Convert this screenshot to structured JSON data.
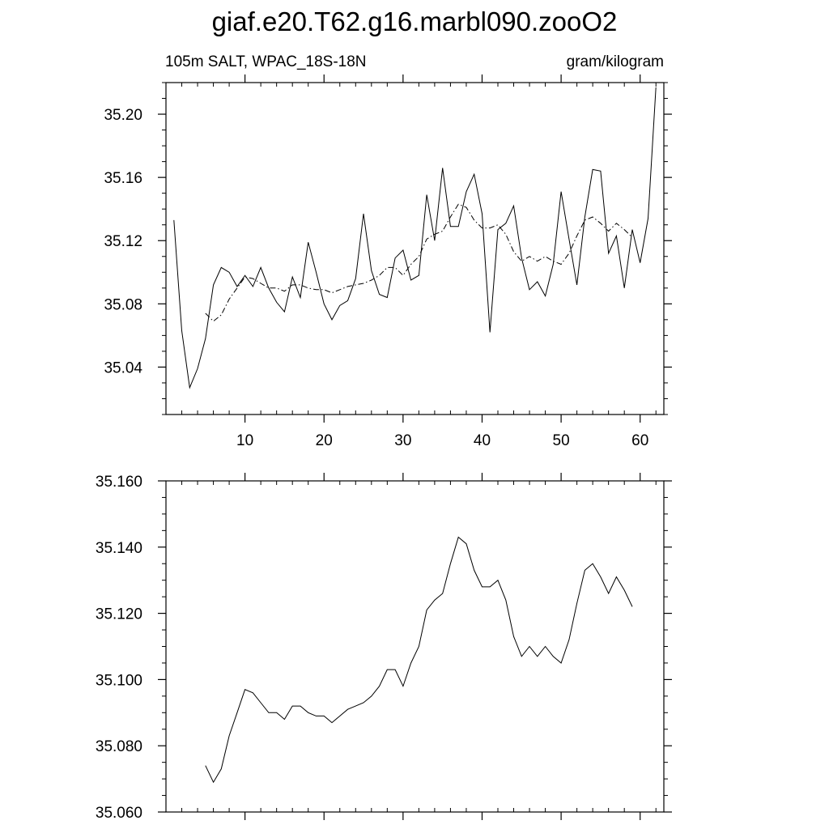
{
  "title": "giaf.e20.T62.g16.marbl090.zooO2",
  "chart_data": [
    {
      "type": "line",
      "left_label": "105m SALT, WPAC_18S-18N",
      "right_label": "gram/kilogram",
      "xlim": [
        0,
        63
      ],
      "ylim": [
        35.01,
        35.22
      ],
      "x_ticks": [
        10,
        20,
        30,
        40,
        50,
        60
      ],
      "x_tick_labels": [
        "10",
        "20",
        "30",
        "40",
        "50",
        "60"
      ],
      "y_ticks": [
        35.04,
        35.08,
        35.12,
        35.16,
        35.2
      ],
      "y_tick_labels": [
        "35.04",
        "35.08",
        "35.12",
        "35.16",
        "35.20"
      ],
      "series": [
        {
          "style": "solid",
          "x": [
            1,
            2,
            3,
            4,
            5,
            6,
            7,
            8,
            9,
            10,
            11,
            12,
            13,
            14,
            15,
            16,
            17,
            18,
            19,
            20,
            21,
            22,
            23,
            24,
            25,
            26,
            27,
            28,
            29,
            30,
            31,
            32,
            33,
            34,
            35,
            36,
            37,
            38,
            39,
            40,
            41,
            42,
            43,
            44,
            45,
            46,
            47,
            48,
            49,
            50,
            51,
            52,
            53,
            54,
            55,
            56,
            57,
            58,
            59,
            60,
            61,
            62
          ],
          "values": [
            35.133,
            35.063,
            35.027,
            35.039,
            35.058,
            35.092,
            35.103,
            35.1,
            35.091,
            35.098,
            35.091,
            35.103,
            35.09,
            35.081,
            35.075,
            35.097,
            35.084,
            35.119,
            35.1,
            35.08,
            35.07,
            35.079,
            35.082,
            35.096,
            35.137,
            35.101,
            35.086,
            35.084,
            35.109,
            35.114,
            35.095,
            35.098,
            35.149,
            35.12,
            35.166,
            35.129,
            35.129,
            35.151,
            35.162,
            35.137,
            35.062,
            35.127,
            35.131,
            35.142,
            35.109,
            35.089,
            35.094,
            35.085,
            35.105,
            35.151,
            35.121,
            35.092,
            35.135,
            35.165,
            35.164,
            35.112,
            35.123,
            35.09,
            35.127,
            35.106,
            35.134,
            35.217
          ]
        },
        {
          "style": "dashed",
          "x": [
            5,
            6,
            7,
            8,
            9,
            10,
            11,
            12,
            13,
            14,
            15,
            16,
            17,
            18,
            19,
            20,
            21,
            22,
            23,
            24,
            25,
            26,
            27,
            28,
            29,
            30,
            31,
            32,
            33,
            34,
            35,
            36,
            37,
            38,
            39,
            40,
            41,
            42,
            43,
            44,
            45,
            46,
            47,
            48,
            49,
            50,
            51,
            52,
            53,
            54,
            55,
            56,
            57,
            58,
            59
          ],
          "values": [
            35.074,
            35.069,
            35.073,
            35.083,
            35.09,
            35.097,
            35.096,
            35.093,
            35.09,
            35.09,
            35.088,
            35.092,
            35.092,
            35.09,
            35.089,
            35.089,
            35.087,
            35.089,
            35.091,
            35.092,
            35.093,
            35.095,
            35.098,
            35.103,
            35.103,
            35.098,
            35.105,
            35.11,
            35.121,
            35.124,
            35.126,
            35.135,
            35.143,
            35.141,
            35.133,
            35.128,
            35.128,
            35.13,
            35.124,
            35.113,
            35.107,
            35.11,
            35.107,
            35.11,
            35.107,
            35.105,
            35.112,
            35.123,
            35.133,
            35.135,
            35.131,
            35.126,
            35.131,
            35.127,
            35.122
          ]
        }
      ]
    },
    {
      "type": "line",
      "xlim": [
        0,
        63
      ],
      "ylim": [
        35.06,
        35.16
      ],
      "x_ticks": [
        10,
        20,
        30,
        40,
        50,
        60
      ],
      "y_ticks": [
        35.06,
        35.08,
        35.1,
        35.12,
        35.14,
        35.16
      ],
      "y_tick_labels": [
        "35.060",
        "35.080",
        "35.100",
        "35.120",
        "35.140",
        "35.160"
      ],
      "series": [
        {
          "style": "solid",
          "x": [
            5,
            6,
            7,
            8,
            9,
            10,
            11,
            12,
            13,
            14,
            15,
            16,
            17,
            18,
            19,
            20,
            21,
            22,
            23,
            24,
            25,
            26,
            27,
            28,
            29,
            30,
            31,
            32,
            33,
            34,
            35,
            36,
            37,
            38,
            39,
            40,
            41,
            42,
            43,
            44,
            45,
            46,
            47,
            48,
            49,
            50,
            51,
            52,
            53,
            54,
            55,
            56,
            57,
            58,
            59
          ],
          "values": [
            35.074,
            35.069,
            35.073,
            35.083,
            35.09,
            35.097,
            35.096,
            35.093,
            35.09,
            35.09,
            35.088,
            35.092,
            35.092,
            35.09,
            35.089,
            35.089,
            35.087,
            35.089,
            35.091,
            35.092,
            35.093,
            35.095,
            35.098,
            35.103,
            35.103,
            35.098,
            35.105,
            35.11,
            35.121,
            35.124,
            35.126,
            35.135,
            35.143,
            35.141,
            35.133,
            35.128,
            35.128,
            35.13,
            35.124,
            35.113,
            35.107,
            35.11,
            35.107,
            35.11,
            35.107,
            35.105,
            35.112,
            35.123,
            35.133,
            35.135,
            35.131,
            35.126,
            35.131,
            35.127,
            35.122
          ]
        }
      ]
    }
  ]
}
